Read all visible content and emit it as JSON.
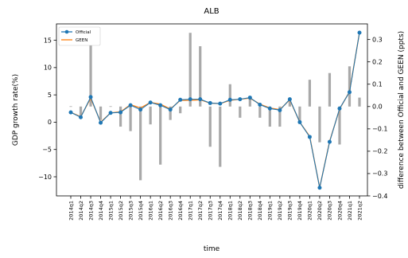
{
  "chart_data": {
    "type": "bar+line",
    "title": "ALB",
    "xlabel": "time",
    "ylabel_left": "GDP growth rate(%)",
    "ylabel_right": "difference between Official and GEEN (ppts)",
    "categories": [
      "2014q1",
      "2014q2",
      "2014q3",
      "2014q4",
      "2015q1",
      "2015q2",
      "2015q3",
      "2015q4",
      "2016q1",
      "2016q2",
      "2016q3",
      "2016q4",
      "2017q1",
      "2017q2",
      "2017q3",
      "2017q4",
      "2018q1",
      "2018q2",
      "2018q3",
      "2018q4",
      "2019q1",
      "2019q2",
      "2019q3",
      "2019q4",
      "2020q1",
      "2020q2",
      "2020q3",
      "2020q4",
      "2021q1",
      "2021q2"
    ],
    "ylim_left": [
      -13.5,
      18
    ],
    "ylim_right": [
      -0.4,
      0.37
    ],
    "yticks_left": [
      -10,
      -5,
      0,
      5,
      10,
      15
    ],
    "yticks_right": [
      -0.4,
      -0.3,
      -0.2,
      -0.1,
      0.0,
      0.1,
      0.2,
      0.3
    ],
    "grid": false,
    "legend_position": "top-left",
    "series": [
      {
        "name": "Official",
        "axis": "left",
        "color": "#1f77b4",
        "marker": "circle",
        "values": [
          1.8,
          0.9,
          4.6,
          -0.1,
          1.7,
          1.8,
          3.1,
          2.3,
          3.6,
          3.1,
          2.3,
          4.1,
          4.2,
          4.2,
          3.5,
          3.4,
          4.1,
          4.2,
          4.5,
          3.2,
          2.5,
          2.2,
          4.2,
          0.0,
          -2.7,
          -12.0,
          -3.6,
          2.5,
          5.5,
          16.4
        ]
      },
      {
        "name": "GEEN",
        "axis": "left",
        "color": "#ff7f0e",
        "marker": "none",
        "values": [
          1.8,
          1.0,
          4.4,
          0.0,
          1.7,
          1.9,
          3.2,
          2.6,
          3.6,
          3.3,
          2.4,
          4.0,
          4.0,
          4.1,
          3.5,
          3.4,
          4.0,
          4.2,
          4.4,
          3.3,
          2.6,
          2.3,
          4.1,
          0.0,
          -2.6,
          -12.0,
          -3.5,
          2.4,
          5.6,
          16.4
        ]
      },
      {
        "name": "difference",
        "axis": "right",
        "color": "#a9a9a9",
        "type": "bar",
        "values": [
          0.0,
          -0.04,
          0.28,
          -0.06,
          0.0,
          -0.09,
          -0.11,
          -0.33,
          -0.08,
          -0.26,
          -0.06,
          -0.03,
          0.33,
          0.27,
          -0.18,
          -0.27,
          0.1,
          -0.05,
          0.04,
          -0.05,
          -0.09,
          -0.09,
          0.04,
          -0.07,
          0.12,
          -0.16,
          0.15,
          -0.17,
          0.18,
          0.04
        ]
      }
    ]
  }
}
